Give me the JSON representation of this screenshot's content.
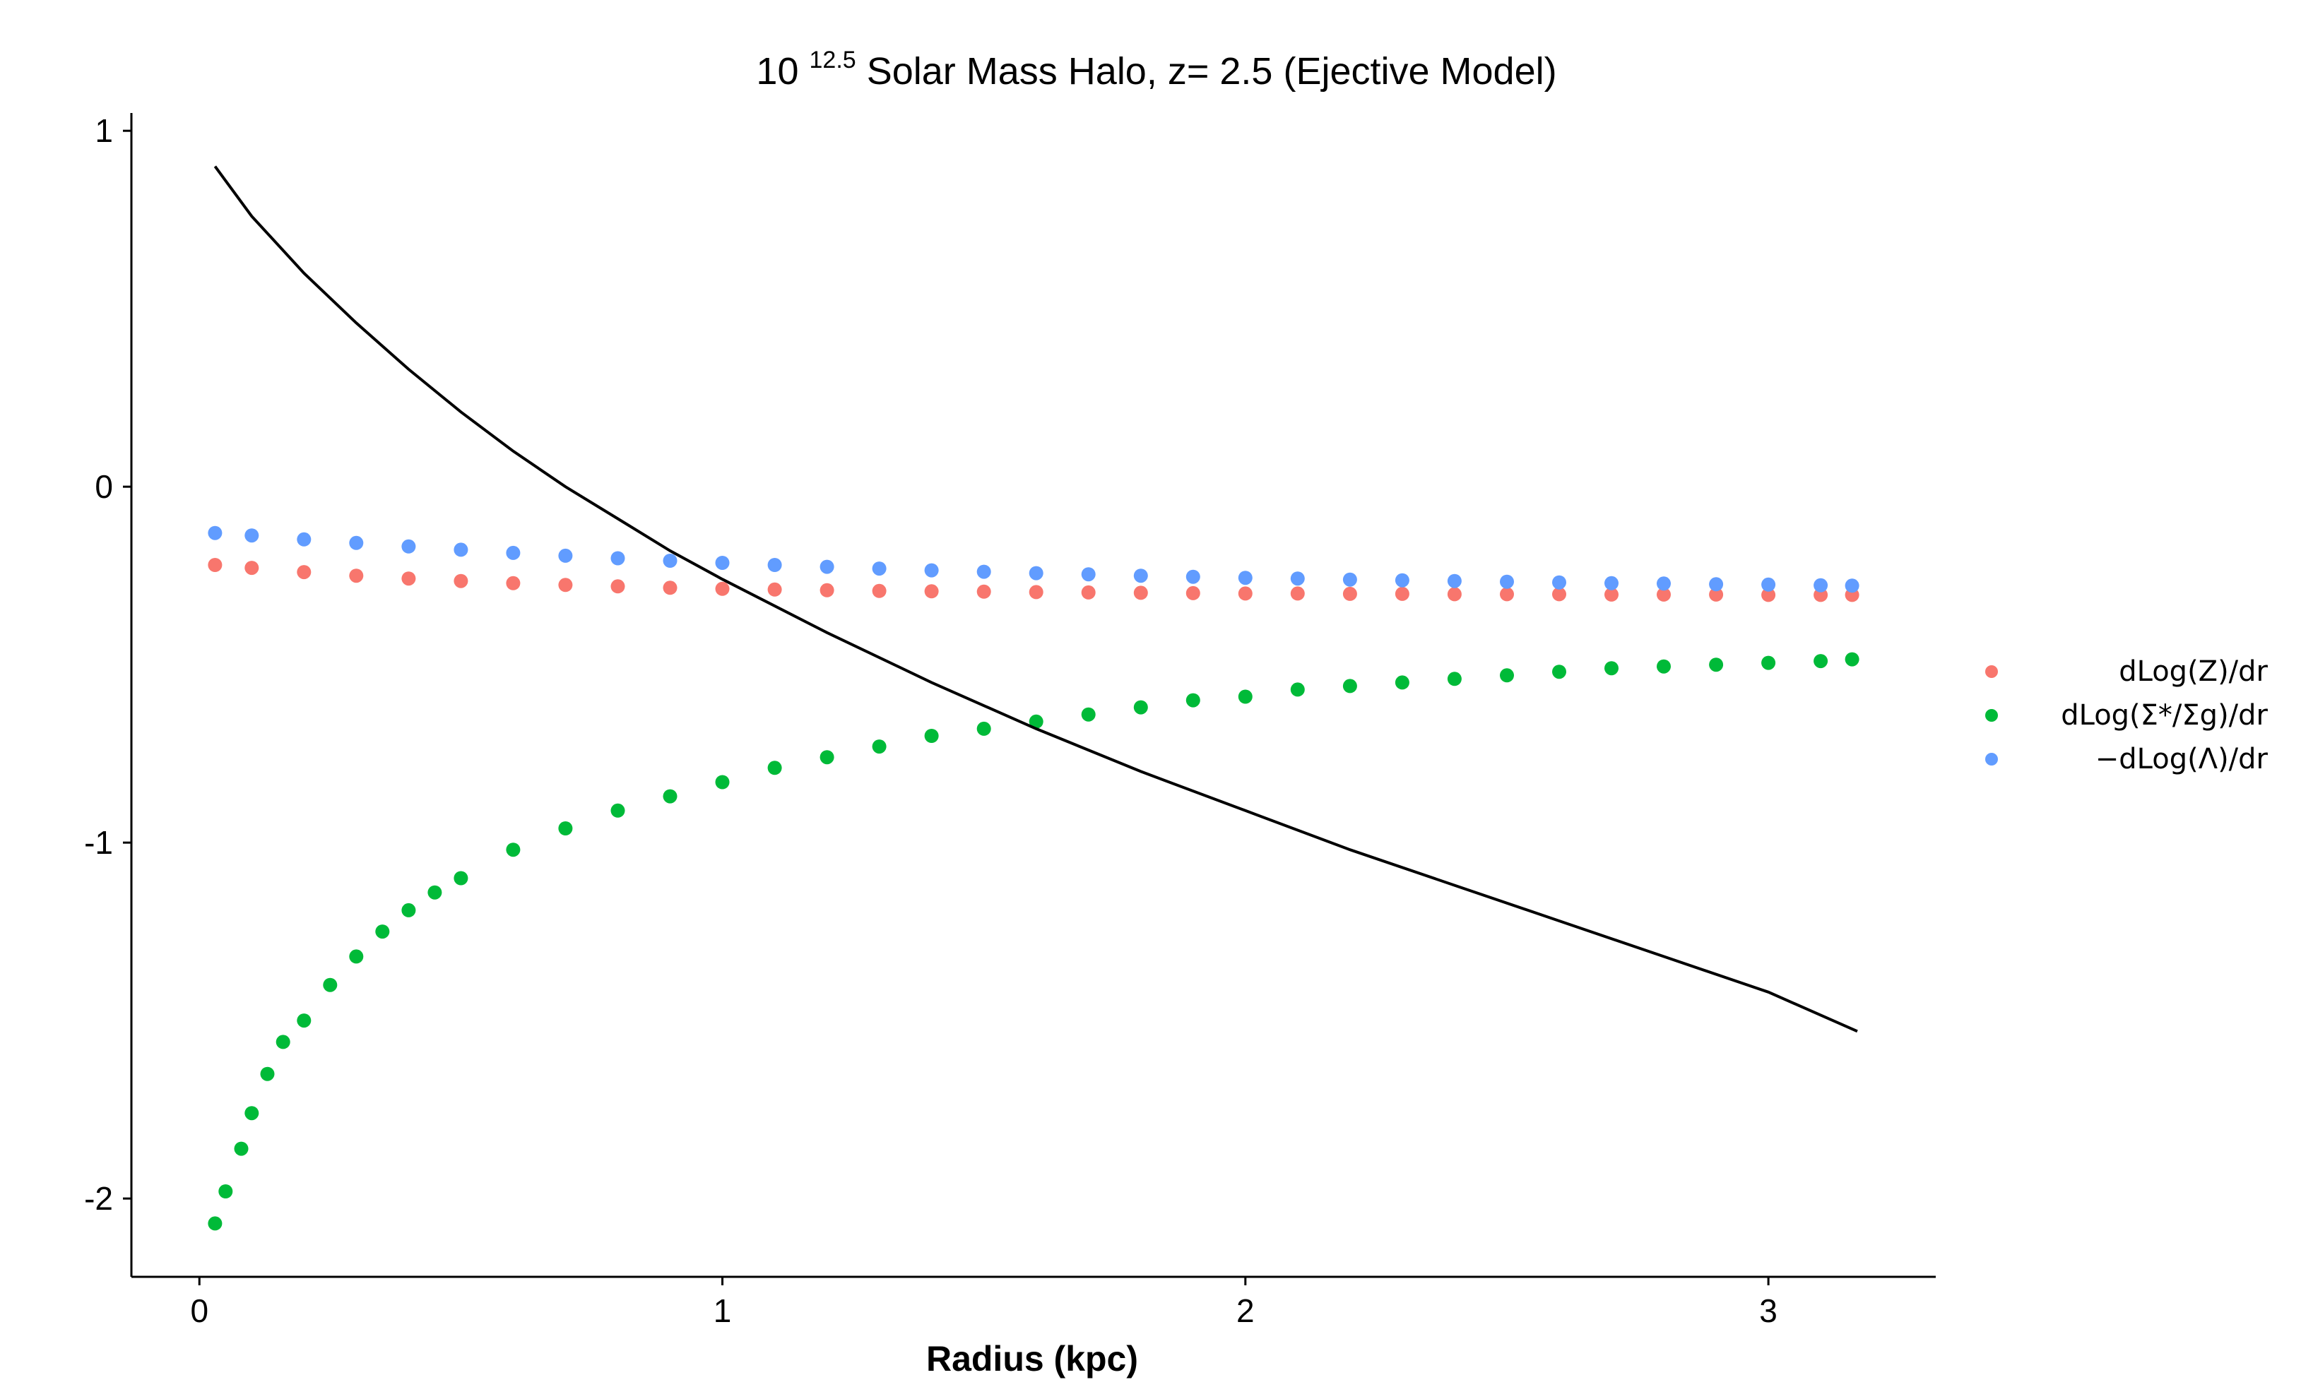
{
  "title": {
    "prefix": "10",
    "exponent": "12.5",
    "suffix": "Solar Mass Halo, z= 2.5 (Ejective Model)"
  },
  "chart_data": {
    "type": "scatter",
    "title": "10^12.5 Solar Mass Halo, z= 2.5 (Ejective Model)",
    "xlabel": "Radius (kpc)",
    "ylabel": "",
    "xlim": [
      -0.13,
      3.32
    ],
    "ylim": [
      -2.22,
      1.05
    ],
    "x_ticks": [
      0,
      1,
      2,
      3
    ],
    "x_tick_labels": [
      "0",
      "1",
      "2",
      "3"
    ],
    "y_ticks": [
      1,
      0,
      -1,
      -2
    ],
    "y_tick_labels": [
      "1",
      "0",
      "-1",
      "-2"
    ],
    "grid": false,
    "legend_position": "right",
    "series": [
      {
        "name": "dLog(Z)/dr",
        "color": "#f8766d",
        "kind": "points",
        "x": [
          0.03,
          0.1,
          0.2,
          0.3,
          0.4,
          0.5,
          0.6,
          0.7,
          0.8,
          0.9,
          1.0,
          1.1,
          1.2,
          1.3,
          1.4,
          1.5,
          1.6,
          1.7,
          1.8,
          1.9,
          2.0,
          2.1,
          2.2,
          2.3,
          2.4,
          2.5,
          2.6,
          2.7,
          2.8,
          2.9,
          3.0,
          3.1,
          3.16
        ],
        "y": [
          -0.22,
          -0.228,
          -0.24,
          -0.25,
          -0.258,
          -0.265,
          -0.271,
          -0.276,
          -0.28,
          -0.284,
          -0.287,
          -0.289,
          -0.291,
          -0.293,
          -0.294,
          -0.295,
          -0.296,
          -0.297,
          -0.298,
          -0.299,
          -0.3,
          -0.3,
          -0.301,
          -0.301,
          -0.302,
          -0.302,
          -0.302,
          -0.303,
          -0.303,
          -0.303,
          -0.304,
          -0.304,
          -0.304
        ]
      },
      {
        "name": "dLog(Σ*/Σg)/dr",
        "color": "#00ba38",
        "kind": "points",
        "x": [
          0.03,
          0.05,
          0.08,
          0.1,
          0.13,
          0.16,
          0.2,
          0.25,
          0.3,
          0.35,
          0.4,
          0.45,
          0.5,
          0.6,
          0.7,
          0.8,
          0.9,
          1.0,
          1.1,
          1.2,
          1.3,
          1.4,
          1.5,
          1.6,
          1.7,
          1.8,
          1.9,
          2.0,
          2.1,
          2.2,
          2.3,
          2.4,
          2.5,
          2.6,
          2.7,
          2.8,
          2.9,
          3.0,
          3.1,
          3.16
        ],
        "y": [
          -2.07,
          -1.98,
          -1.86,
          -1.76,
          -1.65,
          -1.56,
          -1.5,
          -1.4,
          -1.32,
          -1.25,
          -1.19,
          -1.14,
          -1.1,
          -1.02,
          -0.96,
          -0.91,
          -0.87,
          -0.83,
          -0.79,
          -0.76,
          -0.73,
          -0.7,
          -0.68,
          -0.66,
          -0.64,
          -0.62,
          -0.6,
          -0.59,
          -0.57,
          -0.56,
          -0.55,
          -0.54,
          -0.53,
          -0.52,
          -0.51,
          -0.505,
          -0.5,
          -0.495,
          -0.49,
          -0.485
        ]
      },
      {
        "name": "−dLog(Λ)/dr",
        "color": "#619cff",
        "kind": "points",
        "x": [
          0.03,
          0.1,
          0.2,
          0.3,
          0.4,
          0.5,
          0.6,
          0.7,
          0.8,
          0.9,
          1.0,
          1.1,
          1.2,
          1.3,
          1.4,
          1.5,
          1.6,
          1.7,
          1.8,
          1.9,
          2.0,
          2.1,
          2.2,
          2.3,
          2.4,
          2.5,
          2.6,
          2.7,
          2.8,
          2.9,
          3.0,
          3.1,
          3.16
        ],
        "y": [
          -0.13,
          -0.137,
          -0.148,
          -0.158,
          -0.168,
          -0.177,
          -0.186,
          -0.194,
          -0.201,
          -0.208,
          -0.214,
          -0.22,
          -0.225,
          -0.23,
          -0.235,
          -0.239,
          -0.243,
          -0.246,
          -0.25,
          -0.253,
          -0.256,
          -0.258,
          -0.261,
          -0.263,
          -0.265,
          -0.267,
          -0.269,
          -0.271,
          -0.272,
          -0.274,
          -0.275,
          -0.277,
          -0.278
        ]
      },
      {
        "name": "",
        "color": "#000000",
        "kind": "line",
        "x": [
          0.03,
          0.1,
          0.2,
          0.3,
          0.4,
          0.5,
          0.6,
          0.7,
          0.8,
          0.9,
          1.0,
          1.2,
          1.4,
          1.6,
          1.8,
          2.0,
          2.2,
          2.4,
          2.6,
          2.8,
          3.0,
          3.17
        ],
        "y": [
          0.9,
          0.76,
          0.6,
          0.46,
          0.33,
          0.21,
          0.1,
          0.0,
          -0.09,
          -0.18,
          -0.26,
          -0.41,
          -0.55,
          -0.68,
          -0.8,
          -0.91,
          -1.02,
          -1.12,
          -1.22,
          -1.32,
          -1.42,
          -1.53
        ]
      }
    ]
  },
  "legend": {
    "items": [
      {
        "label": "dLog(Z)/dr",
        "color": "#f8766d"
      },
      {
        "label": "dLog(Σ*/Σg)/dr",
        "color": "#00ba38"
      },
      {
        "label": "−dLog(Λ)/dr",
        "color": "#619cff"
      }
    ]
  }
}
